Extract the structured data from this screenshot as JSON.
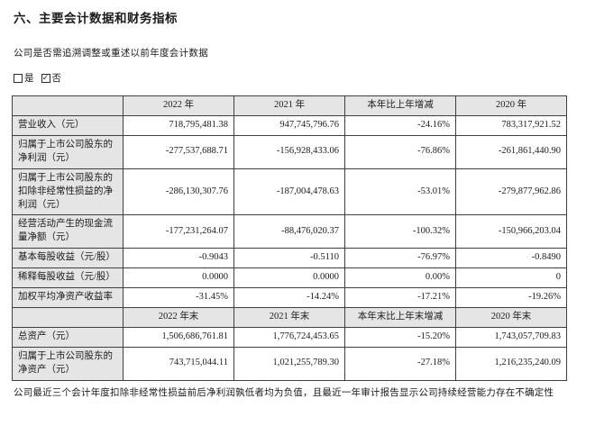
{
  "colors": {
    "cell_shade": "#e5e5e5",
    "table_border": "#3f3f3f",
    "text": "#1b1b1b",
    "page_background": "#ffffff"
  },
  "page": {
    "title": "六、主要会计数据和财务指标",
    "question": "公司是否需追溯调整或重述以前年度会计数据",
    "checkboxes": {
      "yes_label": "是",
      "no_label": "否",
      "checked_option": "否",
      "check_glyph": "✓"
    },
    "footnote": "公司最近三个会计年度扣除非经常性损益前后净利润孰低者均为负值，且最近一年审计报告显示公司持续经营能力存在不确定性"
  },
  "table": {
    "annual_header": [
      "",
      "2022 年",
      "2021 年",
      "本年比上年增减",
      "2020 年"
    ],
    "annual_rows": [
      {
        "label": "营业收入（元）",
        "values": [
          "718,795,481.38",
          "947,745,796.76",
          "-24.16%",
          "783,317,921.52"
        ]
      },
      {
        "label": "归属于上市公司股东的净利润（元）",
        "values": [
          "-277,537,688.71",
          "-156,928,433.06",
          "-76.86%",
          "-261,861,440.90"
        ]
      },
      {
        "label": "归属于上市公司股东的扣除非经常性损益的净利润（元）",
        "values": [
          "-286,130,307.76",
          "-187,004,478.63",
          "-53.01%",
          "-279,877,962.86"
        ]
      },
      {
        "label": "经营活动产生的现金流量净额（元）",
        "values": [
          "-177,231,264.07",
          "-88,476,020.37",
          "-100.32%",
          "-150,966,203.04"
        ]
      },
      {
        "label": "基本每股收益（元/股）",
        "values": [
          "-0.9043",
          "-0.5110",
          "-76.97%",
          "-0.8490"
        ]
      },
      {
        "label": "稀释每股收益（元/股）",
        "values": [
          "0.0000",
          "0.0000",
          "0.00%",
          "0"
        ]
      },
      {
        "label": "加权平均净资产收益率",
        "values": [
          "-31.45%",
          "-14.24%",
          "-17.21%",
          "-19.26%"
        ]
      }
    ],
    "yearend_header": [
      "",
      "2022 年末",
      "2021 年末",
      "本年末比上年末增减",
      "2020 年末"
    ],
    "yearend_rows": [
      {
        "label": "总资产（元）",
        "values": [
          "1,506,686,761.81",
          "1,776,724,453.65",
          "-15.20%",
          "1,743,057,709.83"
        ]
      },
      {
        "label": "归属于上市公司股东的净资产（元）",
        "values": [
          "743,715,044.11",
          "1,021,255,789.30",
          "-27.18%",
          "1,216,235,240.09"
        ]
      }
    ]
  }
}
